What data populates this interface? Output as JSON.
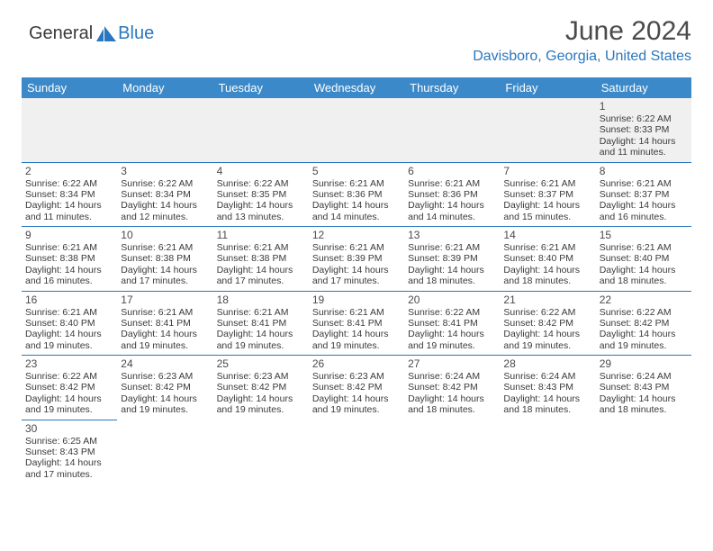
{
  "logo": {
    "text_general": "General",
    "text_blue": "Blue",
    "mark_color": "#2a77bd",
    "text_color_general": "#3a3a3a"
  },
  "title": "June 2024",
  "location": "Davisboro, Georgia, United States",
  "header_bg": "#3b89c9",
  "header_fg": "#ffffff",
  "border_color": "#2a77bd",
  "empty_bg": "#f0f0f0",
  "day_headers": [
    "Sunday",
    "Monday",
    "Tuesday",
    "Wednesday",
    "Thursday",
    "Friday",
    "Saturday"
  ],
  "weeks": [
    [
      null,
      null,
      null,
      null,
      null,
      null,
      {
        "n": "1",
        "sr": "Sunrise: 6:22 AM",
        "ss": "Sunset: 8:33 PM",
        "dl": "Daylight: 14 hours and 11 minutes."
      }
    ],
    [
      {
        "n": "2",
        "sr": "Sunrise: 6:22 AM",
        "ss": "Sunset: 8:34 PM",
        "dl": "Daylight: 14 hours and 11 minutes."
      },
      {
        "n": "3",
        "sr": "Sunrise: 6:22 AM",
        "ss": "Sunset: 8:34 PM",
        "dl": "Daylight: 14 hours and 12 minutes."
      },
      {
        "n": "4",
        "sr": "Sunrise: 6:22 AM",
        "ss": "Sunset: 8:35 PM",
        "dl": "Daylight: 14 hours and 13 minutes."
      },
      {
        "n": "5",
        "sr": "Sunrise: 6:21 AM",
        "ss": "Sunset: 8:36 PM",
        "dl": "Daylight: 14 hours and 14 minutes."
      },
      {
        "n": "6",
        "sr": "Sunrise: 6:21 AM",
        "ss": "Sunset: 8:36 PM",
        "dl": "Daylight: 14 hours and 14 minutes."
      },
      {
        "n": "7",
        "sr": "Sunrise: 6:21 AM",
        "ss": "Sunset: 8:37 PM",
        "dl": "Daylight: 14 hours and 15 minutes."
      },
      {
        "n": "8",
        "sr": "Sunrise: 6:21 AM",
        "ss": "Sunset: 8:37 PM",
        "dl": "Daylight: 14 hours and 16 minutes."
      }
    ],
    [
      {
        "n": "9",
        "sr": "Sunrise: 6:21 AM",
        "ss": "Sunset: 8:38 PM",
        "dl": "Daylight: 14 hours and 16 minutes."
      },
      {
        "n": "10",
        "sr": "Sunrise: 6:21 AM",
        "ss": "Sunset: 8:38 PM",
        "dl": "Daylight: 14 hours and 17 minutes."
      },
      {
        "n": "11",
        "sr": "Sunrise: 6:21 AM",
        "ss": "Sunset: 8:38 PM",
        "dl": "Daylight: 14 hours and 17 minutes."
      },
      {
        "n": "12",
        "sr": "Sunrise: 6:21 AM",
        "ss": "Sunset: 8:39 PM",
        "dl": "Daylight: 14 hours and 17 minutes."
      },
      {
        "n": "13",
        "sr": "Sunrise: 6:21 AM",
        "ss": "Sunset: 8:39 PM",
        "dl": "Daylight: 14 hours and 18 minutes."
      },
      {
        "n": "14",
        "sr": "Sunrise: 6:21 AM",
        "ss": "Sunset: 8:40 PM",
        "dl": "Daylight: 14 hours and 18 minutes."
      },
      {
        "n": "15",
        "sr": "Sunrise: 6:21 AM",
        "ss": "Sunset: 8:40 PM",
        "dl": "Daylight: 14 hours and 18 minutes."
      }
    ],
    [
      {
        "n": "16",
        "sr": "Sunrise: 6:21 AM",
        "ss": "Sunset: 8:40 PM",
        "dl": "Daylight: 14 hours and 19 minutes."
      },
      {
        "n": "17",
        "sr": "Sunrise: 6:21 AM",
        "ss": "Sunset: 8:41 PM",
        "dl": "Daylight: 14 hours and 19 minutes."
      },
      {
        "n": "18",
        "sr": "Sunrise: 6:21 AM",
        "ss": "Sunset: 8:41 PM",
        "dl": "Daylight: 14 hours and 19 minutes."
      },
      {
        "n": "19",
        "sr": "Sunrise: 6:21 AM",
        "ss": "Sunset: 8:41 PM",
        "dl": "Daylight: 14 hours and 19 minutes."
      },
      {
        "n": "20",
        "sr": "Sunrise: 6:22 AM",
        "ss": "Sunset: 8:41 PM",
        "dl": "Daylight: 14 hours and 19 minutes."
      },
      {
        "n": "21",
        "sr": "Sunrise: 6:22 AM",
        "ss": "Sunset: 8:42 PM",
        "dl": "Daylight: 14 hours and 19 minutes."
      },
      {
        "n": "22",
        "sr": "Sunrise: 6:22 AM",
        "ss": "Sunset: 8:42 PM",
        "dl": "Daylight: 14 hours and 19 minutes."
      }
    ],
    [
      {
        "n": "23",
        "sr": "Sunrise: 6:22 AM",
        "ss": "Sunset: 8:42 PM",
        "dl": "Daylight: 14 hours and 19 minutes."
      },
      {
        "n": "24",
        "sr": "Sunrise: 6:23 AM",
        "ss": "Sunset: 8:42 PM",
        "dl": "Daylight: 14 hours and 19 minutes."
      },
      {
        "n": "25",
        "sr": "Sunrise: 6:23 AM",
        "ss": "Sunset: 8:42 PM",
        "dl": "Daylight: 14 hours and 19 minutes."
      },
      {
        "n": "26",
        "sr": "Sunrise: 6:23 AM",
        "ss": "Sunset: 8:42 PM",
        "dl": "Daylight: 14 hours and 19 minutes."
      },
      {
        "n": "27",
        "sr": "Sunrise: 6:24 AM",
        "ss": "Sunset: 8:42 PM",
        "dl": "Daylight: 14 hours and 18 minutes."
      },
      {
        "n": "28",
        "sr": "Sunrise: 6:24 AM",
        "ss": "Sunset: 8:43 PM",
        "dl": "Daylight: 14 hours and 18 minutes."
      },
      {
        "n": "29",
        "sr": "Sunrise: 6:24 AM",
        "ss": "Sunset: 8:43 PM",
        "dl": "Daylight: 14 hours and 18 minutes."
      }
    ],
    [
      {
        "n": "30",
        "sr": "Sunrise: 6:25 AM",
        "ss": "Sunset: 8:43 PM",
        "dl": "Daylight: 14 hours and 17 minutes."
      },
      null,
      null,
      null,
      null,
      null,
      null
    ]
  ]
}
